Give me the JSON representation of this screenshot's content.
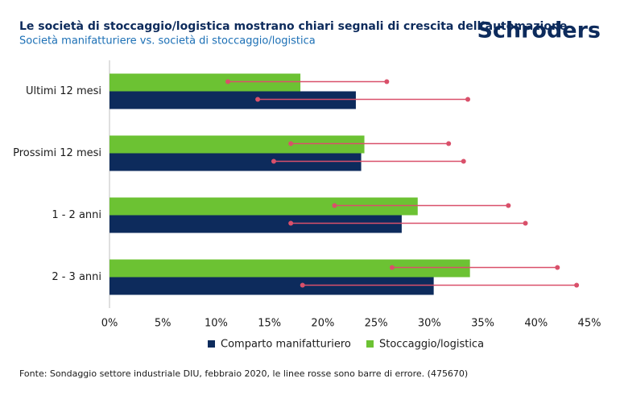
{
  "chart_data": {
    "type": "bar",
    "orientation": "horizontal",
    "title": "Le società di stoccaggio/logistica mostrano chiari segnali di crescita dell’automazione",
    "subtitle": "Società manifatturiere vs. società di stoccaggio/logistica",
    "brand": "Schroders",
    "footnote": "Fonte: Sondaggio settore industriale DIU, febbraio 2020, le linee rosse sono barre di errore. (475670)",
    "categories": [
      "Ultimi 12 mesi",
      "Prossimi 12 mesi",
      "1 - 2 anni",
      "2 - 3 anni"
    ],
    "series": [
      {
        "name": "Comparto manifatturiero",
        "color": "#0d2b5c",
        "values": [
          23.1,
          23.6,
          27.4,
          30.4
        ],
        "error_low": [
          13.9,
          15.4,
          17.0,
          18.1
        ],
        "error_high": [
          33.6,
          33.2,
          39.0,
          43.8
        ]
      },
      {
        "name": "Stoccaggio/logistica",
        "color": "#6cc233",
        "values": [
          17.9,
          23.9,
          28.9,
          33.8
        ],
        "error_low": [
          11.1,
          17.0,
          21.1,
          26.5
        ],
        "error_high": [
          26.0,
          31.8,
          37.4,
          42.0
        ]
      }
    ],
    "error_color": "#d9506a",
    "xlim": [
      0,
      45
    ],
    "xticks": [
      {
        "value": 0,
        "label": "0%"
      },
      {
        "value": 5,
        "label": "5%"
      },
      {
        "value": 10,
        "label": "10%"
      },
      {
        "value": 15,
        "label": "15%"
      },
      {
        "value": 20,
        "label": "20%"
      },
      {
        "value": 25,
        "label": "25%"
      },
      {
        "value": 30,
        "label": "30%"
      },
      {
        "value": 35,
        "label": "35%"
      },
      {
        "value": 40,
        "label": "40%"
      },
      {
        "value": 45,
        "label": "45%"
      }
    ],
    "legend": "bottom"
  }
}
